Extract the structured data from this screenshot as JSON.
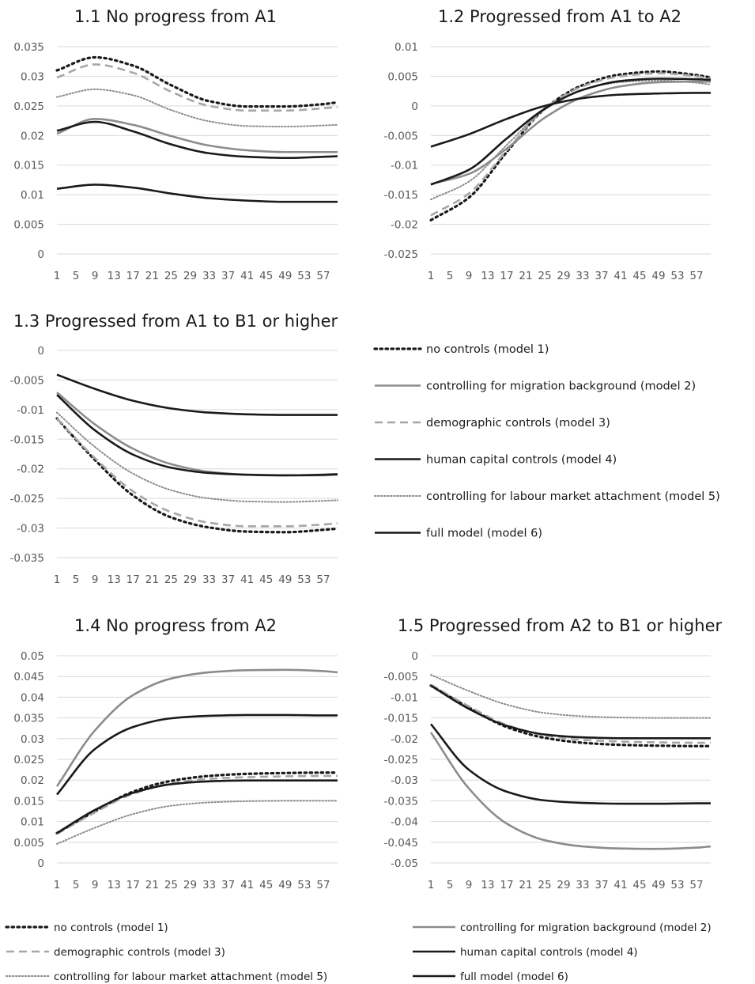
{
  "styles": {
    "m1": {
      "color": "#1a1a1a",
      "dash": "2.5 4.5",
      "width": 3.2,
      "cap": "round"
    },
    "m2": {
      "color": "#8c8c8c",
      "dash": "",
      "width": 2.6,
      "cap": "butt"
    },
    "m3": {
      "color": "#a6a6a6",
      "dash": "10 6",
      "width": 2.6,
      "cap": "butt"
    },
    "m4": {
      "color": "#1a1a1a",
      "dash": "",
      "width": 2.6,
      "cap": "butt"
    },
    "m5": {
      "color": "#8c8c8c",
      "dash": "1.5 2.5",
      "width": 2.0,
      "cap": "round"
    },
    "m6": {
      "color": "#1a1a1a",
      "dash": "",
      "width": 2.6,
      "cap": "butt"
    }
  },
  "legend_labels": {
    "m1": "no controls (model 1)",
    "m2": "controlling for migration background (model 2)",
    "m3": "demographic controls (model 3)",
    "m4": "human capital controls (model 4)",
    "m5": "controlling for labour market attachment (model 5)",
    "m6": "full model (model 6)"
  },
  "chart_data": [
    {
      "type": "line",
      "title": "1.1 No progress from A1",
      "x_ticks": [
        "1",
        "5",
        "9",
        "13",
        "17",
        "21",
        "25",
        "29",
        "33",
        "37",
        "41",
        "45",
        "49",
        "53",
        "57"
      ],
      "x": [
        1,
        9,
        17,
        25,
        33,
        41,
        49,
        57,
        60
      ],
      "y_ticks": [
        "0",
        "0.005",
        "0.01",
        "0.015",
        "0.02",
        "0.025",
        "0.03",
        "0.035"
      ],
      "ylim": [
        0,
        0.035
      ],
      "series": [
        {
          "key": "m1",
          "values": [
            0.031,
            0.0332,
            0.0318,
            0.0285,
            0.0258,
            0.0249,
            0.0249,
            0.0253,
            0.0256
          ]
        },
        {
          "key": "m3",
          "values": [
            0.0298,
            0.032,
            0.0306,
            0.0274,
            0.025,
            0.0242,
            0.0242,
            0.0246,
            0.0248
          ]
        },
        {
          "key": "m5",
          "values": [
            0.0265,
            0.0278,
            0.0268,
            0.0243,
            0.0224,
            0.0216,
            0.0215,
            0.0217,
            0.0218
          ]
        },
        {
          "key": "m2",
          "values": [
            0.0203,
            0.0228,
            0.0218,
            0.0199,
            0.0183,
            0.0175,
            0.0172,
            0.0172,
            0.0172
          ]
        },
        {
          "key": "m4",
          "values": [
            0.0208,
            0.0223,
            0.0207,
            0.0185,
            0.017,
            0.0164,
            0.0162,
            0.0164,
            0.0165
          ]
        },
        {
          "key": "m6",
          "values": [
            0.011,
            0.0117,
            0.0112,
            0.0102,
            0.0094,
            0.009,
            0.0088,
            0.0088,
            0.0088
          ]
        }
      ]
    },
    {
      "type": "line",
      "title": "1.2 Progressed from A1 to A2",
      "x_ticks": [
        "1",
        "5",
        "9",
        "13",
        "17",
        "21",
        "25",
        "29",
        "33",
        "37",
        "41",
        "45",
        "49",
        "53",
        "57"
      ],
      "x": [
        1,
        9,
        17,
        25,
        33,
        41,
        49,
        57,
        60
      ],
      "y_ticks": [
        "-0.025",
        "-0.02",
        "-0.015",
        "-0.01",
        "-0.005",
        "0",
        "0.005",
        "0.01"
      ],
      "ylim": [
        -0.025,
        0.01
      ],
      "series": [
        {
          "key": "m1",
          "values": [
            -0.0193,
            -0.0155,
            -0.0078,
            -0.0005,
            0.0035,
            0.0053,
            0.0058,
            0.0052,
            0.0048
          ]
        },
        {
          "key": "m3",
          "values": [
            -0.0185,
            -0.0148,
            -0.0075,
            -0.0005,
            0.0033,
            0.005,
            0.0055,
            0.005,
            0.0046
          ]
        },
        {
          "key": "m5",
          "values": [
            -0.0158,
            -0.0128,
            -0.0066,
            -0.0006,
            0.0027,
            0.004,
            0.0043,
            0.0039,
            0.0036
          ]
        },
        {
          "key": "m2",
          "values": [
            -0.0132,
            -0.0115,
            -0.0072,
            -0.002,
            0.0015,
            0.0033,
            0.004,
            0.0041,
            0.0041
          ]
        },
        {
          "key": "m4",
          "values": [
            -0.0133,
            -0.0108,
            -0.0055,
            -0.0005,
            0.0027,
            0.0042,
            0.0046,
            0.0045,
            0.0044
          ]
        },
        {
          "key": "m6",
          "values": [
            -0.0069,
            -0.0048,
            -0.0022,
            0.0,
            0.0013,
            0.0019,
            0.0021,
            0.0022,
            0.0022
          ]
        }
      ]
    },
    {
      "type": "line",
      "title": "1.3 Progressed from A1 to B1 or higher",
      "x_ticks": [
        "1",
        "5",
        "9",
        "13",
        "17",
        "21",
        "25",
        "29",
        "33",
        "37",
        "41",
        "45",
        "49",
        "53",
        "57"
      ],
      "x": [
        1,
        9,
        17,
        25,
        33,
        41,
        49,
        57,
        60
      ],
      "y_ticks": [
        "-0.035",
        "-0.03",
        "-0.025",
        "-0.02",
        "-0.015",
        "-0.01",
        "-0.005",
        "0"
      ],
      "ylim": [
        -0.035,
        0
      ],
      "series": [
        {
          "key": "m1",
          "values": [
            -0.0115,
            -0.0185,
            -0.0245,
            -0.0282,
            -0.0299,
            -0.0306,
            -0.0307,
            -0.0303,
            -0.0301
          ]
        },
        {
          "key": "m3",
          "values": [
            -0.0115,
            -0.0182,
            -0.0238,
            -0.0273,
            -0.0291,
            -0.0297,
            -0.0297,
            -0.0294,
            -0.0292
          ]
        },
        {
          "key": "m5",
          "values": [
            -0.0105,
            -0.0163,
            -0.0208,
            -0.0236,
            -0.025,
            -0.0255,
            -0.0256,
            -0.0254,
            -0.0253
          ]
        },
        {
          "key": "m2",
          "values": [
            -0.0071,
            -0.0125,
            -0.0166,
            -0.0192,
            -0.0205,
            -0.021,
            -0.0211,
            -0.0211,
            -0.021
          ]
        },
        {
          "key": "m4",
          "values": [
            -0.0075,
            -0.0135,
            -0.0176,
            -0.0198,
            -0.0207,
            -0.021,
            -0.0211,
            -0.021,
            -0.0209
          ]
        },
        {
          "key": "m6",
          "values": [
            -0.0041,
            -0.0065,
            -0.0085,
            -0.0098,
            -0.0105,
            -0.0108,
            -0.0109,
            -0.0109,
            -0.0109
          ]
        }
      ]
    },
    {
      "type": "line",
      "title": "1.4 No progress from A2",
      "x_ticks": [
        "1",
        "5",
        "9",
        "13",
        "17",
        "21",
        "25",
        "29",
        "33",
        "37",
        "41",
        "45",
        "49",
        "53",
        "57"
      ],
      "x": [
        1,
        9,
        17,
        25,
        33,
        41,
        49,
        57,
        60
      ],
      "y_ticks": [
        "0",
        "0.005",
        "0.01",
        "0.015",
        "0.02",
        "0.025",
        "0.03",
        "0.035",
        "0.04",
        "0.045",
        "0.05"
      ],
      "ylim": [
        0,
        0.05
      ],
      "series": [
        {
          "key": "m2",
          "values": [
            0.0185,
            0.032,
            0.0405,
            0.0445,
            0.046,
            0.0465,
            0.0466,
            0.0463,
            0.046
          ]
        },
        {
          "key": "m6",
          "values": [
            0.0165,
            0.0275,
            0.0328,
            0.0349,
            0.0355,
            0.0357,
            0.0357,
            0.0356,
            0.0356
          ]
        },
        {
          "key": "m1",
          "values": [
            0.0072,
            0.0125,
            0.0172,
            0.0198,
            0.021,
            0.0215,
            0.0217,
            0.0218,
            0.0218
          ]
        },
        {
          "key": "m3",
          "values": [
            0.007,
            0.0122,
            0.0167,
            0.0192,
            0.0203,
            0.0207,
            0.0209,
            0.021,
            0.021
          ]
        },
        {
          "key": "m4",
          "values": [
            0.0072,
            0.0128,
            0.0169,
            0.019,
            0.0197,
            0.0199,
            0.0199,
            0.0199,
            0.0199
          ]
        },
        {
          "key": "m5",
          "values": [
            0.0046,
            0.0085,
            0.0118,
            0.0138,
            0.0146,
            0.0149,
            0.015,
            0.015,
            0.015
          ]
        }
      ]
    },
    {
      "type": "line",
      "title": "1.5 Progressed from A2 to B1 or higher",
      "x_ticks": [
        "1",
        "5",
        "9",
        "13",
        "17",
        "21",
        "25",
        "29",
        "33",
        "37",
        "41",
        "45",
        "49",
        "53",
        "57"
      ],
      "x": [
        1,
        9,
        17,
        25,
        33,
        41,
        49,
        57,
        60
      ],
      "y_ticks": [
        "-0.05",
        "-0.045",
        "-0.04",
        "-0.035",
        "-0.03",
        "-0.025",
        "-0.02",
        "-0.015",
        "-0.01",
        "-0.005",
        "0"
      ],
      "ylim": [
        -0.05,
        0
      ],
      "series": [
        {
          "key": "m5",
          "values": [
            -0.0046,
            -0.0085,
            -0.0118,
            -0.0138,
            -0.0146,
            -0.0149,
            -0.015,
            -0.015,
            -0.015
          ]
        },
        {
          "key": "m1",
          "values": [
            -0.0072,
            -0.0125,
            -0.0172,
            -0.0198,
            -0.021,
            -0.0215,
            -0.0217,
            -0.0218,
            -0.0218
          ]
        },
        {
          "key": "m3",
          "values": [
            -0.007,
            -0.0122,
            -0.0167,
            -0.0192,
            -0.0203,
            -0.0207,
            -0.0209,
            -0.021,
            -0.021
          ]
        },
        {
          "key": "m4",
          "values": [
            -0.0072,
            -0.0128,
            -0.0169,
            -0.019,
            -0.0197,
            -0.0199,
            -0.0199,
            -0.0199,
            -0.0199
          ]
        },
        {
          "key": "m6",
          "values": [
            -0.0165,
            -0.0275,
            -0.0328,
            -0.0349,
            -0.0355,
            -0.0357,
            -0.0357,
            -0.0356,
            -0.0356
          ]
        },
        {
          "key": "m2",
          "values": [
            -0.0185,
            -0.032,
            -0.0405,
            -0.0445,
            -0.046,
            -0.0465,
            -0.0466,
            -0.0463,
            -0.046
          ]
        }
      ]
    }
  ]
}
